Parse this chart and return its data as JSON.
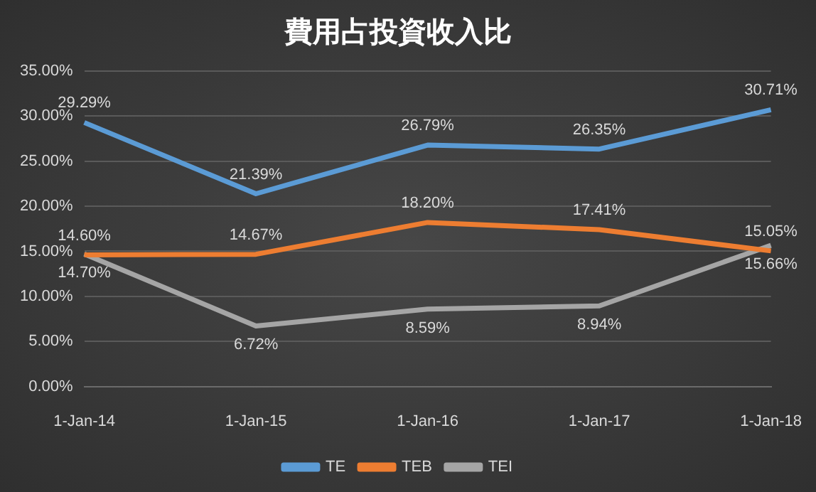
{
  "chart_data": {
    "type": "line",
    "title": "費用占投資收入比",
    "categories": [
      "1-Jan-14",
      "1-Jan-15",
      "1-Jan-16",
      "1-Jan-17",
      "1-Jan-18"
    ],
    "series": [
      {
        "name": "TE",
        "color": "#5b9bd5",
        "values": [
          29.29,
          21.39,
          26.79,
          26.35,
          30.71
        ],
        "value_labels": [
          "29.29%",
          "21.39%",
          "26.79%",
          "26.35%",
          "30.71%"
        ]
      },
      {
        "name": "TEB",
        "color": "#ed7d31",
        "values": [
          14.6,
          14.67,
          18.2,
          17.41,
          15.05
        ],
        "value_labels": [
          "14.60%",
          "14.67%",
          "18.20%",
          "17.41%",
          "15.05%"
        ]
      },
      {
        "name": "TEI",
        "color": "#a5a5a5",
        "values": [
          14.7,
          6.72,
          8.59,
          8.94,
          15.66
        ],
        "value_labels": [
          "14.70%",
          "6.72%",
          "8.59%",
          "8.94%",
          "15.66%"
        ]
      }
    ],
    "ylim": [
      0,
      35
    ],
    "yticks": [
      {
        "value": 0,
        "label": "0.00%"
      },
      {
        "value": 5,
        "label": "5.00%"
      },
      {
        "value": 10,
        "label": "10.00%"
      },
      {
        "value": 15,
        "label": "15.00%"
      },
      {
        "value": 20,
        "label": "20.00%"
      },
      {
        "value": 25,
        "label": "25.00%"
      },
      {
        "value": 30,
        "label": "30.00%"
      },
      {
        "value": 35,
        "label": "35.00%"
      }
    ],
    "grid": "y",
    "legend": "bottom",
    "marker": "none",
    "line_style": "solid"
  }
}
